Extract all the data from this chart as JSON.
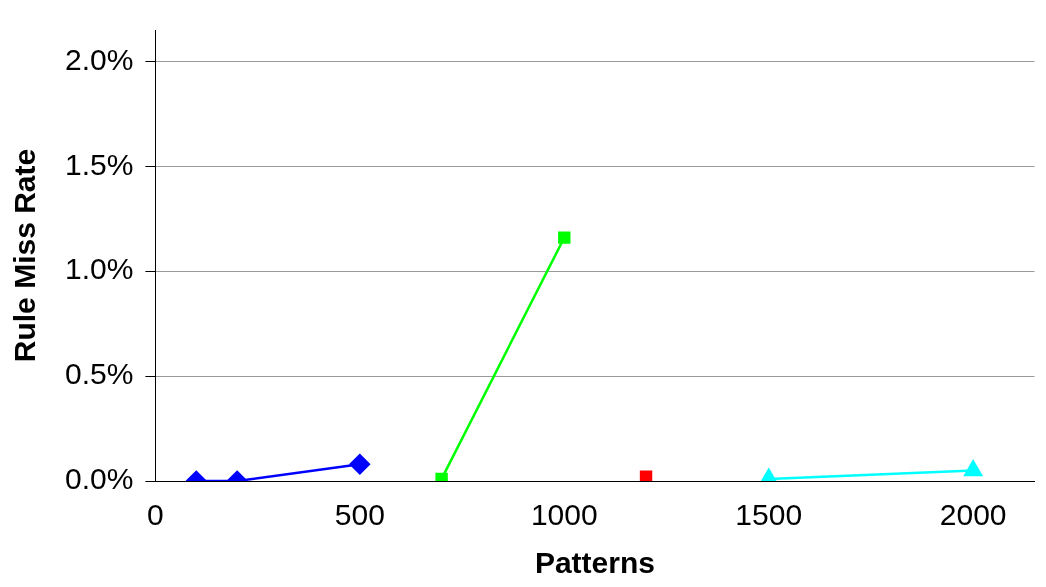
{
  "chart_data": {
    "type": "line",
    "xlabel": "Patterns",
    "ylabel": "Rule Miss Rate",
    "xlim": [
      0,
      2150
    ],
    "xticks": [
      0,
      500,
      1000,
      1500,
      2000
    ],
    "ylim": [
      0,
      2.15
    ],
    "yticks": [
      {
        "value": 0,
        "label": "0.0%"
      },
      {
        "value": 0.5,
        "label": "0.5%"
      },
      {
        "value": 1,
        "label": "1.0%"
      },
      {
        "value": 1.5,
        "label": "1.5%"
      },
      {
        "value": 2,
        "label": "2.0%"
      }
    ],
    "grid": "y",
    "legend": false,
    "line_style": "solid",
    "series": [
      {
        "color": "#0000ff",
        "marker": "diamond",
        "x": [
          100,
          200,
          500
        ],
        "values": [
          0,
          0,
          0.08
        ]
      },
      {
        "color": "#00ff00",
        "marker": "square",
        "x": [
          700,
          1000
        ],
        "values": [
          0.01,
          1.16
        ]
      },
      {
        "color": "#ff0000",
        "marker": "square",
        "x": [
          1200
        ],
        "values": [
          0.02
        ]
      },
      {
        "color": "#00ffff",
        "marker": "triangle",
        "x": [
          1500,
          2000
        ],
        "values": [
          0.01,
          0.05
        ]
      }
    ]
  }
}
